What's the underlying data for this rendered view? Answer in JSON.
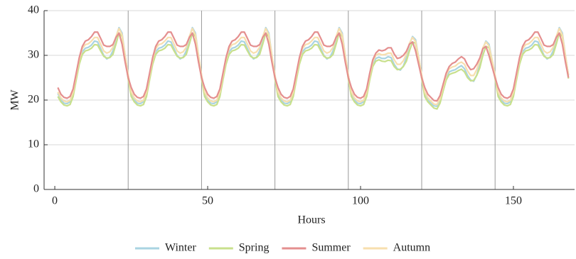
{
  "chart_data": {
    "type": "line",
    "x_label": "Hours",
    "y_label": "MW",
    "xlim": [
      -3.5,
      170
    ],
    "ylim": [
      0,
      40
    ],
    "xticks": [
      0,
      50,
      100,
      150
    ],
    "yticks": [
      0,
      10,
      20,
      30,
      40
    ],
    "grid": true,
    "day_lines": [
      24,
      48,
      72,
      96,
      120,
      144
    ],
    "legend": "bottom",
    "x": [
      1,
      2,
      3,
      4,
      5,
      6,
      7,
      8,
      9,
      10,
      11,
      12,
      13,
      14,
      15,
      16,
      17,
      18,
      19,
      20,
      21,
      22,
      23,
      24,
      25,
      26,
      27,
      28,
      29,
      30,
      31,
      32,
      33,
      34,
      35,
      36,
      37,
      38,
      39,
      40,
      41,
      42,
      43,
      44,
      45,
      46,
      47,
      48,
      49,
      50,
      51,
      52,
      53,
      54,
      55,
      56,
      57,
      58,
      59,
      60,
      61,
      62,
      63,
      64,
      65,
      66,
      67,
      68,
      69,
      70,
      71,
      72,
      73,
      74,
      75,
      76,
      77,
      78,
      79,
      80,
      81,
      82,
      83,
      84,
      85,
      86,
      87,
      88,
      89,
      90,
      91,
      92,
      93,
      94,
      95,
      96,
      97,
      98,
      99,
      100,
      101,
      102,
      103,
      104,
      105,
      106,
      107,
      108,
      109,
      110,
      111,
      112,
      113,
      114,
      115,
      116,
      117,
      118,
      119,
      120,
      121,
      122,
      123,
      124,
      125,
      126,
      127,
      128,
      129,
      130,
      131,
      132,
      133,
      134,
      135,
      136,
      137,
      138,
      139,
      140,
      141,
      142,
      143,
      144,
      145,
      146,
      147,
      148,
      149,
      150,
      151,
      152,
      153,
      154,
      155,
      156,
      157,
      158,
      159,
      160,
      161,
      162,
      163,
      164,
      165,
      166,
      167,
      168
    ],
    "series": [
      {
        "name": "Winter",
        "color": "#a9d4e2",
        "values": [
          21.5,
          20,
          19.3,
          19.2,
          19.6,
          21.5,
          25,
          28.5,
          30.8,
          31.6,
          31.8,
          32.3,
          33.2,
          33,
          31.5,
          30,
          29.2,
          29.6,
          31,
          34,
          36.2,
          35,
          30,
          25.5,
          21.5,
          20,
          19.3,
          19.2,
          19.6,
          21.5,
          25,
          28.5,
          30.8,
          31.6,
          31.8,
          32.3,
          33.2,
          33,
          31.5,
          30,
          29.2,
          29.6,
          31,
          34,
          36.2,
          35,
          30,
          25.5,
          21.5,
          20,
          19.3,
          19.2,
          19.6,
          21.5,
          25,
          28.5,
          30.8,
          31.6,
          31.8,
          32.3,
          33.2,
          33,
          31.5,
          30,
          29.2,
          29.6,
          31,
          34,
          36.2,
          35,
          30,
          25.5,
          21.5,
          20,
          19.3,
          19.2,
          19.6,
          21.5,
          25,
          28.5,
          30.8,
          31.6,
          31.8,
          32.3,
          33.2,
          33,
          31.5,
          30,
          29.2,
          29.6,
          31,
          34,
          36.2,
          35,
          30,
          25.5,
          21.5,
          20,
          19.3,
          19.2,
          19.6,
          21.5,
          25,
          28,
          29.3,
          29.6,
          29.3,
          29.3,
          29.7,
          29.5,
          28,
          27,
          26.7,
          27.6,
          29.5,
          32.5,
          34.2,
          33.5,
          29.5,
          25.5,
          21.5,
          20,
          19.3,
          18.7,
          18.6,
          20,
          22.5,
          25,
          26.3,
          26.6,
          26.8,
          27.3,
          27.7,
          27,
          25.5,
          24.5,
          24.2,
          25.6,
          28,
          31.5,
          33.2,
          32.5,
          29,
          25.5,
          21.5,
          20,
          19.3,
          19.2,
          19.6,
          21.5,
          25,
          28.5,
          30.8,
          31.6,
          31.8,
          32.3,
          33.2,
          33,
          31.5,
          30,
          29.2,
          29.6,
          31,
          34,
          36.2,
          35,
          30,
          25.5
        ]
      },
      {
        "name": "Spring",
        "color": "#c8e08c",
        "values": [
          20.8,
          19.6,
          18.9,
          18.7,
          19,
          20.8,
          24.5,
          28,
          30.2,
          31,
          31.2,
          31.6,
          32.4,
          32.3,
          31,
          29.8,
          29.4,
          29.5,
          30.2,
          32.5,
          35,
          34.2,
          29.5,
          24.8,
          20.8,
          19.6,
          18.9,
          18.7,
          19,
          20.8,
          24.5,
          28,
          30.2,
          31,
          31.2,
          31.6,
          32.4,
          32.3,
          31,
          29.8,
          29.4,
          29.5,
          30.2,
          32.5,
          35,
          34.2,
          29.5,
          24.8,
          20.8,
          19.6,
          18.9,
          18.7,
          19,
          20.8,
          24.5,
          28,
          30.2,
          31,
          31.2,
          31.6,
          32.4,
          32.3,
          31,
          29.8,
          29.4,
          29.5,
          30.2,
          32.5,
          35,
          34.2,
          29.5,
          24.8,
          20.8,
          19.6,
          18.9,
          18.7,
          19,
          20.8,
          24.5,
          28,
          30.2,
          31,
          31.2,
          31.6,
          32.4,
          32.3,
          31,
          29.8,
          29.4,
          29.5,
          30.2,
          32.5,
          35,
          34.2,
          29.5,
          24.8,
          20.8,
          19.6,
          18.9,
          18.7,
          19,
          20.8,
          24.5,
          27.5,
          28.7,
          29,
          28.7,
          28.6,
          28.9,
          28.8,
          27.5,
          26.8,
          26.9,
          27.5,
          28.7,
          31,
          33,
          32.7,
          29,
          24.8,
          20.8,
          19.6,
          18.9,
          18.2,
          18,
          19.3,
          22,
          24.5,
          25.7,
          26,
          26.2,
          26.6,
          26.9,
          26.3,
          25,
          24.3,
          24.4,
          25.5,
          27.2,
          30,
          32,
          31.7,
          28.5,
          24.8,
          20.8,
          19.6,
          18.9,
          18.7,
          19,
          20.8,
          24.5,
          28,
          30.2,
          31,
          31.2,
          31.6,
          32.4,
          32.3,
          31,
          29.8,
          29.4,
          29.5,
          30.2,
          32.5,
          35,
          34.2,
          29.5,
          24.8
        ]
      },
      {
        "name": "Autumn",
        "color": "#f7dfae",
        "values": [
          21.8,
          20.5,
          19.8,
          19.6,
          20,
          21.8,
          25.4,
          29,
          31.5,
          32.4,
          32.6,
          33.2,
          34,
          34,
          32.5,
          31,
          30.5,
          30.8,
          31.8,
          34.2,
          36,
          34.6,
          30,
          25.6,
          21.8,
          20.5,
          19.8,
          19.6,
          20,
          21.8,
          25.4,
          29,
          31.5,
          32.4,
          32.6,
          33.2,
          34,
          34,
          32.5,
          31,
          30.5,
          30.8,
          31.8,
          34.2,
          36,
          34.6,
          30,
          25.6,
          21.8,
          20.5,
          19.8,
          19.6,
          20,
          21.8,
          25.4,
          29,
          31.5,
          32.4,
          32.6,
          33.2,
          34,
          34,
          32.5,
          31,
          30.5,
          30.8,
          31.8,
          34.2,
          36,
          34.6,
          30,
          25.6,
          21.8,
          20.5,
          19.8,
          19.6,
          20,
          21.8,
          25.4,
          29,
          31.5,
          32.4,
          32.6,
          33.2,
          34,
          34,
          32.5,
          31,
          30.5,
          30.8,
          31.8,
          34.2,
          36,
          34.6,
          30,
          25.6,
          21.8,
          20.5,
          19.8,
          19.6,
          20,
          21.8,
          25.4,
          28.5,
          30,
          30.4,
          30.1,
          30.2,
          30.5,
          30.5,
          29,
          28,
          28,
          28.8,
          30.3,
          32.7,
          34,
          33.1,
          29.5,
          25.6,
          21.8,
          20.5,
          19.8,
          19.1,
          19,
          20.3,
          22.9,
          25.5,
          27,
          27.4,
          27.6,
          28.2,
          28.5,
          28,
          26.5,
          25.5,
          25.5,
          26.8,
          28.8,
          31.7,
          33,
          32.1,
          29,
          25.6,
          21.8,
          20.5,
          19.8,
          19.6,
          20,
          21.8,
          25.4,
          29,
          31.5,
          32.4,
          32.6,
          33.2,
          34,
          34,
          32.5,
          31,
          30.5,
          30.8,
          31.8,
          34.2,
          36,
          34.6,
          30,
          25.6
        ]
      },
      {
        "name": "Summer",
        "color": "#e48f8f",
        "values": [
          22.8,
          21.3,
          20.6,
          20.4,
          20.8,
          22.5,
          26,
          29.5,
          32,
          33.2,
          33.5,
          34.2,
          35.2,
          35.2,
          33.8,
          32.3,
          32,
          32,
          32.4,
          34,
          35,
          32.5,
          28.5,
          25,
          22.8,
          21.3,
          20.6,
          20.4,
          20.8,
          22.5,
          26,
          29.5,
          32,
          33.2,
          33.5,
          34.2,
          35.2,
          35.2,
          33.8,
          32.3,
          32,
          32,
          32.4,
          34,
          35,
          32.5,
          28.5,
          25,
          22.8,
          21.3,
          20.6,
          20.4,
          20.8,
          22.5,
          26,
          29.5,
          32,
          33.2,
          33.5,
          34.2,
          35.2,
          35.2,
          33.8,
          32.3,
          32,
          32,
          32.4,
          34,
          35,
          32.5,
          28.5,
          25,
          22.8,
          21.3,
          20.6,
          20.4,
          20.8,
          22.5,
          26,
          29.5,
          32,
          33.2,
          33.5,
          34.2,
          35.2,
          35.2,
          33.8,
          32.3,
          32,
          32,
          32.4,
          34,
          35,
          32.5,
          28.5,
          25,
          22.8,
          21.3,
          20.6,
          20.4,
          20.8,
          22.5,
          26,
          29,
          30.5,
          31.2,
          31,
          31.2,
          31.7,
          31.7,
          30.3,
          29.3,
          29.5,
          30,
          30.9,
          32.5,
          33,
          31,
          28,
          25,
          22.8,
          21.3,
          20.6,
          19.9,
          19.8,
          21,
          23.5,
          26,
          27.5,
          28.2,
          28.5,
          29.2,
          29.7,
          29.2,
          27.8,
          26.8,
          27,
          28,
          29.4,
          31.5,
          32,
          30,
          27.5,
          25,
          22.8,
          21.3,
          20.6,
          20.4,
          20.8,
          22.5,
          26,
          29.5,
          32,
          33.2,
          33.5,
          34.2,
          35.2,
          35.2,
          33.8,
          32.3,
          32,
          32,
          32.4,
          34,
          35,
          32.5,
          28.5,
          25
        ]
      }
    ],
    "legend_order": [
      0,
      1,
      3,
      2
    ]
  }
}
